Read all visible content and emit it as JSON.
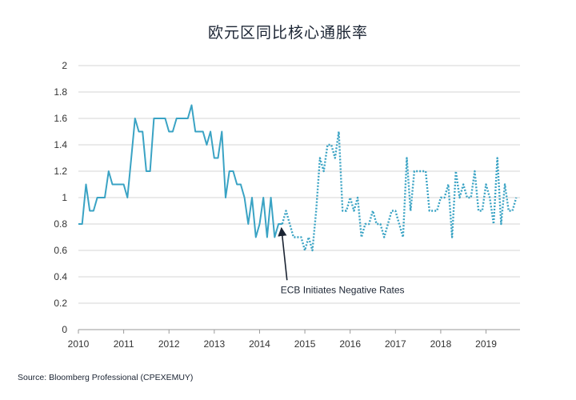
{
  "chart_data": {
    "type": "line",
    "title": "欧元区同比核心通胀率",
    "xlabel": "",
    "ylabel": "",
    "xlim": [
      2010,
      2019.75
    ],
    "ylim": [
      0,
      2
    ],
    "yticks": [
      "0",
      "0.2",
      "0.4",
      "0.6",
      "0.8",
      "1",
      "1.2",
      "1.4",
      "1.6",
      "1.8",
      "2"
    ],
    "xticks": [
      "2010",
      "2011",
      "2012",
      "2013",
      "2014",
      "2015",
      "2016",
      "2017",
      "2018",
      "2019"
    ],
    "grid": "horizontal",
    "line_color": "#3aa3c4",
    "series": [
      {
        "style": "solid",
        "x": [
          2010.0,
          2010.083,
          2010.167,
          2010.25,
          2010.333,
          2010.417,
          2010.5,
          2010.583,
          2010.667,
          2010.75,
          2010.833,
          2010.917,
          2011.0,
          2011.083,
          2011.167,
          2011.25,
          2011.333,
          2011.417,
          2011.5,
          2011.583,
          2011.667,
          2011.75,
          2011.833,
          2011.917,
          2012.0,
          2012.083,
          2012.167,
          2012.25,
          2012.333,
          2012.417,
          2012.5,
          2012.583,
          2012.667,
          2012.75,
          2012.833,
          2012.917,
          2013.0,
          2013.083,
          2013.167,
          2013.25,
          2013.333,
          2013.417,
          2013.5,
          2013.583,
          2013.667,
          2013.75,
          2013.833,
          2013.917,
          2014.0,
          2014.083,
          2014.167,
          2014.25,
          2014.333,
          2014.417,
          2014.5
        ],
        "y": [
          0.8,
          0.8,
          1.1,
          0.9,
          0.9,
          1.0,
          1.0,
          1.0,
          1.2,
          1.1,
          1.1,
          1.1,
          1.1,
          1.0,
          1.3,
          1.6,
          1.5,
          1.5,
          1.2,
          1.2,
          1.6,
          1.6,
          1.6,
          1.6,
          1.5,
          1.5,
          1.6,
          1.6,
          1.6,
          1.6,
          1.7,
          1.5,
          1.5,
          1.5,
          1.4,
          1.5,
          1.3,
          1.3,
          1.5,
          1.0,
          1.2,
          1.2,
          1.1,
          1.1,
          1.0,
          0.8,
          1.0,
          0.7,
          0.8,
          1.0,
          0.7,
          1.0,
          0.7,
          0.8,
          0.8
        ]
      },
      {
        "style": "dotted",
        "x": [
          2014.5,
          2014.583,
          2014.667,
          2014.75,
          2014.833,
          2014.917,
          2015.0,
          2015.083,
          2015.167,
          2015.25,
          2015.333,
          2015.417,
          2015.5,
          2015.583,
          2015.667,
          2015.75,
          2015.833,
          2015.917,
          2016.0,
          2016.083,
          2016.167,
          2016.25,
          2016.333,
          2016.417,
          2016.5,
          2016.583,
          2016.667,
          2016.75,
          2016.833,
          2016.917,
          2017.0,
          2017.083,
          2017.167,
          2017.25,
          2017.333,
          2017.417,
          2017.5,
          2017.583,
          2017.667,
          2017.75,
          2017.833,
          2017.917,
          2018.0,
          2018.083,
          2018.167,
          2018.25,
          2018.333,
          2018.417,
          2018.5,
          2018.583,
          2018.667,
          2018.75,
          2018.833,
          2018.917,
          2019.0,
          2019.083,
          2019.167,
          2019.25,
          2019.333,
          2019.417,
          2019.5,
          2019.583,
          2019.667
        ],
        "y": [
          0.8,
          0.9,
          0.8,
          0.7,
          0.7,
          0.7,
          0.6,
          0.7,
          0.6,
          0.9,
          1.3,
          1.2,
          1.4,
          1.4,
          1.3,
          1.5,
          0.9,
          0.9,
          1.0,
          0.9,
          1.0,
          0.7,
          0.8,
          0.8,
          0.9,
          0.8,
          0.8,
          0.7,
          0.8,
          0.9,
          0.9,
          0.8,
          0.7,
          1.3,
          0.9,
          1.2,
          1.2,
          1.2,
          1.2,
          0.9,
          0.9,
          0.9,
          1.0,
          1.0,
          1.1,
          0.7,
          1.2,
          1.0,
          1.1,
          1.0,
          1.0,
          1.2,
          0.9,
          0.9,
          1.1,
          1.0,
          0.8,
          1.3,
          0.8,
          1.1,
          0.9,
          0.9,
          1.0
        ]
      }
    ],
    "annotation": {
      "text": "ECB Initiates Negative Rates",
      "point_x": 2014.5,
      "point_y": 0.8,
      "label_y": 0.35
    },
    "source": "Source: Bloomberg Professional (CPEXEMUY)"
  }
}
